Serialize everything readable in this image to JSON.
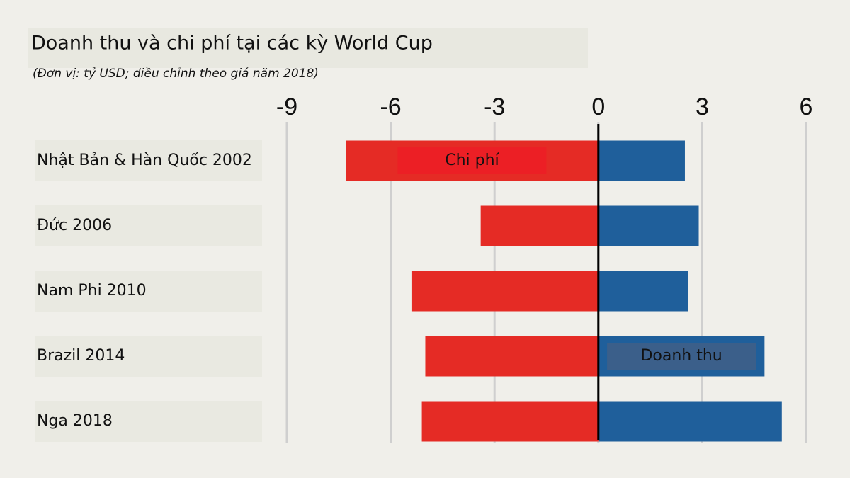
{
  "chart_data": {
    "type": "bar",
    "orientation": "horizontal",
    "title": "Doanh thu và chi phí tại các kỳ World Cup",
    "subtitle": "(Đơn vị: tỷ USD; điều chỉnh theo giá năm 2018)",
    "categories": [
      "Nhật Bản & Hàn Quốc 2002",
      "Đức 2006",
      "Nam Phi 2010",
      "Brazil 2014",
      "Nga 2018"
    ],
    "series": [
      {
        "name": "Chi phí",
        "color": "#e52b25",
        "values": [
          -7.3,
          -3.4,
          -5.4,
          -5.0,
          -5.1
        ]
      },
      {
        "name": "Doanh thu",
        "color": "#1f5f9b",
        "values": [
          2.5,
          2.9,
          2.6,
          4.8,
          5.3
        ]
      }
    ],
    "xlim": [
      -9,
      6
    ],
    "xticks": [
      -9,
      -6,
      -3,
      0,
      3,
      6
    ],
    "grid": true
  }
}
